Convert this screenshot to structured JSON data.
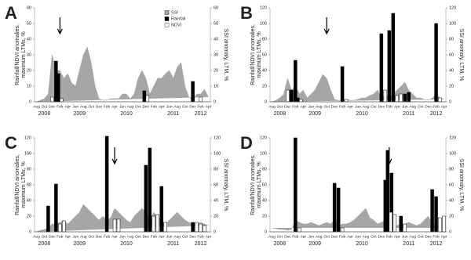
{
  "chart_data": [
    {
      "type": "bar",
      "panel": "A",
      "categories": [
        "Aug",
        null,
        "Oct",
        null,
        "Dec",
        null,
        "Feb",
        null,
        "Apr",
        null,
        "Jun",
        null,
        "Aug",
        null,
        "Oct",
        null,
        "Dec",
        null,
        "Feb",
        null,
        "Apr",
        null,
        "Jun",
        null,
        "Aug",
        null,
        "Oct",
        null,
        "Dec",
        null,
        "Feb",
        null,
        "Apr",
        null,
        "Jun",
        null,
        "Aug",
        null,
        "Oct",
        null,
        "Dec",
        null,
        "Feb",
        null,
        "Apr"
      ],
      "years": [
        "2008",
        "2009",
        "2010",
        "2011",
        "2012"
      ],
      "ylabel": [
        "Rainfall/NDVI anomalies,",
        "maximum LTMs, %"
      ],
      "y2label": "SSI anomaly, LTM, %",
      "ylim": [
        0,
        60
      ],
      "yticks": [
        0,
        10,
        20,
        30,
        40,
        50,
        60
      ],
      "y2lim": [
        0,
        60
      ],
      "y2ticks": [
        0,
        10,
        20,
        30,
        40,
        50,
        60
      ],
      "legend": true,
      "series": [
        {
          "name": "SSI",
          "color": "#a6a6a6",
          "axis": "y2",
          "values": [
            0,
            1,
            2,
            5,
            30,
            20,
            20,
            15,
            18,
            12,
            10,
            20,
            30,
            35,
            25,
            10,
            2,
            1,
            1,
            2,
            2,
            2,
            5,
            5,
            2,
            5,
            15,
            20,
            15,
            5,
            10,
            15,
            15,
            18,
            20,
            15,
            22,
            25,
            10,
            3,
            1,
            5,
            5,
            8,
            3
          ]
        },
        {
          "name": "Rainfall",
          "color": "#000000",
          "values": [
            null,
            null,
            null,
            null,
            null,
            26,
            18,
            null,
            null,
            null,
            null,
            null,
            null,
            null,
            null,
            null,
            null,
            null,
            null,
            null,
            null,
            null,
            null,
            null,
            null,
            null,
            null,
            null,
            7,
            null,
            null,
            null,
            null,
            null,
            null,
            null,
            null,
            null,
            null,
            null,
            13,
            null,
            null,
            null,
            null
          ]
        },
        {
          "name": "NDVI",
          "color": "#ffffff",
          "values": [
            null,
            null,
            null,
            null,
            3,
            null,
            2,
            null,
            null,
            null,
            null,
            null,
            null,
            null,
            null,
            null,
            null,
            null,
            null,
            null,
            null,
            null,
            null,
            null,
            null,
            null,
            null,
            null,
            4,
            null,
            null,
            null,
            null,
            null,
            null,
            null,
            null,
            null,
            null,
            null,
            null,
            null,
            3,
            null,
            null
          ]
        }
      ]
    },
    {
      "type": "bar",
      "panel": "B",
      "categories": [
        "Aug",
        null,
        "Oct",
        null,
        "Dec",
        null,
        "Feb",
        null,
        "Apr",
        null,
        "Jun",
        null,
        "Aug",
        null,
        "Oct",
        null,
        "Dec",
        null,
        "Feb",
        null,
        "Apr",
        null,
        "Jun",
        null,
        "Aug",
        null,
        "Oct",
        null,
        "Dec",
        null,
        "Feb",
        null,
        "Apr",
        null,
        "Jun",
        null,
        "Aug",
        null,
        "Oct",
        null,
        "Dec",
        null,
        "Feb",
        null,
        "Apr"
      ],
      "years": [
        "2008",
        "2009",
        "2010",
        "2011",
        "2012"
      ],
      "ylabel": [
        "Rainfall/NDVI anomalies,",
        "maximum LTMs, %"
      ],
      "y2label": "SSI anomaly, LTM, %",
      "ylim": [
        0,
        120
      ],
      "yticks": [
        0,
        20,
        40,
        60,
        80,
        100,
        120
      ],
      "y2lim": [
        0,
        120
      ],
      "y2ticks": [
        0,
        20,
        40,
        60,
        80,
        100,
        120
      ],
      "series": [
        {
          "name": "SSI",
          "color": "#a6a6a6",
          "axis": "y2",
          "values": [
            0,
            2,
            5,
            10,
            30,
            15,
            20,
            10,
            15,
            5,
            10,
            15,
            25,
            35,
            30,
            15,
            3,
            2,
            2,
            3,
            2,
            2,
            3,
            5,
            5,
            8,
            10,
            15,
            5,
            10,
            5,
            10,
            15,
            20,
            25,
            15,
            10,
            5,
            5,
            3,
            2,
            5,
            10,
            5,
            3
          ]
        },
        {
          "name": "Rainfall",
          "color": "#000000",
          "values": [
            null,
            null,
            null,
            null,
            null,
            15,
            53,
            5,
            null,
            null,
            null,
            null,
            null,
            null,
            null,
            null,
            null,
            null,
            45,
            null,
            null,
            null,
            null,
            null,
            null,
            null,
            null,
            null,
            87,
            null,
            91,
            113,
            null,
            null,
            10,
            12,
            null,
            null,
            null,
            null,
            null,
            null,
            100,
            null,
            null
          ]
        },
        {
          "name": "NDVI",
          "color": "#ffffff",
          "values": [
            null,
            null,
            null,
            null,
            15,
            null,
            null,
            3,
            null,
            null,
            null,
            null,
            null,
            null,
            null,
            null,
            null,
            null,
            null,
            3,
            null,
            null,
            null,
            null,
            null,
            null,
            null,
            null,
            null,
            15,
            null,
            null,
            8,
            10,
            null,
            null,
            null,
            null,
            null,
            null,
            null,
            null,
            null,
            5,
            null
          ]
        }
      ]
    },
    {
      "type": "bar",
      "panel": "C",
      "categories": [
        "Aug",
        null,
        "Oct",
        null,
        "Dec",
        null,
        "Feb",
        null,
        "Apr",
        null,
        "Jun",
        null,
        "Aug",
        null,
        "Oct",
        null,
        "Dec",
        null,
        "Feb",
        null,
        "Apr",
        null,
        "Jun",
        null,
        "Aug",
        null,
        "Oct",
        null,
        "Dec",
        null,
        "Feb",
        null,
        "Apr",
        null,
        "Jun",
        null,
        "Aug",
        null,
        "Oct",
        null,
        "Dec",
        null,
        "Feb",
        null,
        "Apr"
      ],
      "years": [
        "2008",
        "2009",
        "2010",
        "2011",
        "2012"
      ],
      "ylabel": [
        "Rainfall/NDVI anomalies,",
        "maximum LTMs, %"
      ],
      "y2label": "SSI anomaly, LTM, %",
      "ylim": [
        0,
        120
      ],
      "yticks": [
        0,
        20,
        40,
        60,
        80,
        100,
        120
      ],
      "y2lim": [
        0,
        120
      ],
      "y2ticks": [
        0,
        20,
        40,
        60,
        80,
        100,
        120
      ],
      "series": [
        {
          "name": "SSI",
          "color": "#a6a6a6",
          "axis": "y2",
          "values": [
            0,
            2,
            3,
            5,
            10,
            10,
            12,
            15,
            10,
            15,
            20,
            25,
            35,
            30,
            25,
            20,
            15,
            20,
            15,
            18,
            30,
            25,
            20,
            15,
            12,
            20,
            25,
            30,
            25,
            15,
            25,
            20,
            15,
            10,
            15,
            20,
            25,
            20,
            15,
            12,
            10,
            10,
            12,
            10,
            8
          ]
        },
        {
          "name": "Rainfall",
          "color": "#000000",
          "values": [
            null,
            null,
            null,
            33,
            null,
            61,
            null,
            null,
            null,
            null,
            null,
            null,
            null,
            null,
            null,
            null,
            null,
            null,
            122,
            null,
            null,
            null,
            null,
            null,
            null,
            null,
            null,
            null,
            85,
            107,
            null,
            null,
            58,
            null,
            null,
            null,
            null,
            null,
            null,
            null,
            12,
            null,
            null,
            null,
            null
          ]
        },
        {
          "name": "NDVI",
          "color": "#ffffff",
          "values": [
            null,
            null,
            null,
            null,
            null,
            null,
            10,
            14,
            null,
            null,
            null,
            null,
            null,
            null,
            null,
            null,
            null,
            null,
            null,
            null,
            16,
            16,
            null,
            null,
            null,
            null,
            null,
            null,
            null,
            null,
            20,
            22,
            null,
            12,
            null,
            null,
            null,
            null,
            null,
            null,
            null,
            12,
            10,
            8,
            null
          ]
        }
      ]
    },
    {
      "type": "bar",
      "panel": "D",
      "categories": [
        "Aug",
        null,
        "Oct",
        null,
        "Dec",
        null,
        "Feb",
        null,
        "Apr",
        null,
        "Jun",
        null,
        "Aug",
        null,
        "Oct",
        null,
        "Dec",
        null,
        "Feb",
        null,
        "Apr",
        null,
        "Jun",
        null,
        "Aug",
        null,
        "Oct",
        null,
        "Dec",
        null,
        "Feb",
        null,
        "Apr",
        null,
        "Jun",
        null,
        "Aug",
        null,
        "Oct",
        null,
        "Dec",
        null,
        "Feb",
        null,
        "Apr"
      ],
      "years": [
        "2008",
        "2009",
        "2010",
        "2011",
        "2012"
      ],
      "ylabel": [
        "Rainfall/NDVI anomalies,",
        "maximum LTMs, %"
      ],
      "y2label": "SSI anomaly, LTM, %",
      "ylim": [
        0,
        120
      ],
      "yticks": [
        0,
        20,
        40,
        60,
        80,
        100,
        120
      ],
      "y2lim": [
        0,
        120
      ],
      "y2ticks": [
        0,
        20,
        40,
        60,
        80,
        100,
        120
      ],
      "series": [
        {
          "name": "SSI",
          "color": "#a6a6a6",
          "axis": "y2",
          "values": [
            5,
            4,
            3,
            3,
            2,
            3,
            15,
            12,
            10,
            10,
            12,
            10,
            8,
            10,
            12,
            10,
            15,
            8,
            10,
            10,
            12,
            15,
            20,
            25,
            30,
            18,
            15,
            10,
            12,
            15,
            10,
            12,
            8,
            10,
            10,
            12,
            10,
            8,
            10,
            15,
            20,
            10,
            8,
            5,
            5
          ]
        },
        {
          "name": "Rainfall",
          "color": "#000000",
          "values": [
            null,
            null,
            null,
            null,
            null,
            null,
            120,
            null,
            null,
            null,
            null,
            null,
            null,
            null,
            null,
            null,
            62,
            56,
            null,
            null,
            null,
            null,
            null,
            null,
            null,
            null,
            null,
            null,
            null,
            66,
            104,
            75,
            null,
            20,
            null,
            null,
            null,
            null,
            null,
            null,
            null,
            54,
            45,
            null,
            null
          ]
        },
        {
          "name": "NDVI",
          "color": "#ffffff",
          "values": [
            null,
            null,
            null,
            null,
            null,
            null,
            null,
            5,
            null,
            null,
            null,
            null,
            null,
            null,
            null,
            null,
            null,
            null,
            5,
            null,
            null,
            null,
            null,
            null,
            null,
            null,
            null,
            null,
            null,
            null,
            25,
            22,
            null,
            null,
            10,
            null,
            null,
            null,
            null,
            null,
            null,
            null,
            null,
            18,
            20
          ]
        }
      ]
    }
  ]
}
